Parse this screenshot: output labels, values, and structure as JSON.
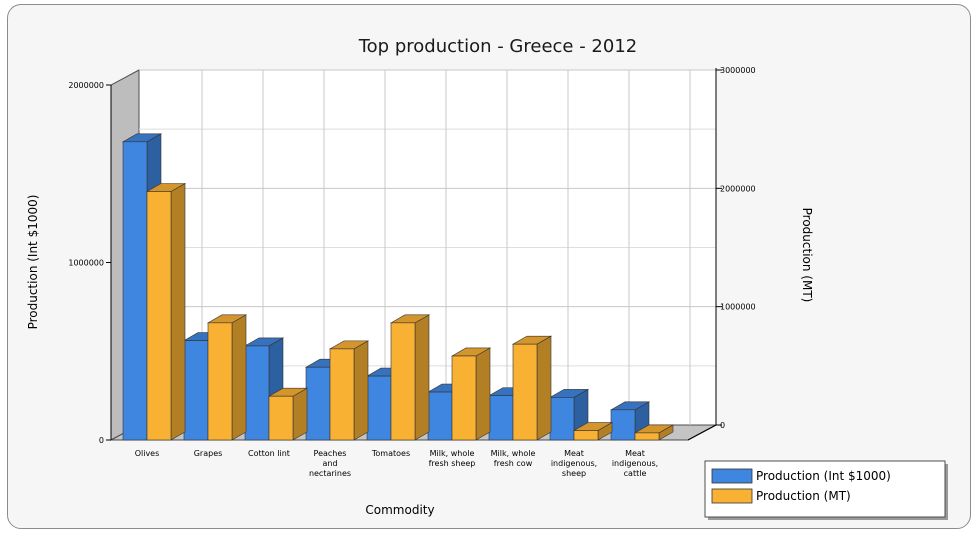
{
  "chart_data": {
    "type": "bar",
    "title": "Top production - Greece - 2012",
    "xlabel": "Commodity",
    "ylabel_left": "Production (Int $1000)",
    "ylabel_right": "Production (MT)",
    "ylim_left": [
      0,
      2000000
    ],
    "ylim_right": [
      0,
      3000000
    ],
    "left_ticks": [
      "0",
      "1000000",
      "2000000"
    ],
    "right_ticks": [
      "0",
      "1000000",
      "2000000",
      "3000000"
    ],
    "categories": [
      [
        "Olives"
      ],
      [
        "Grapes"
      ],
      [
        "Cotton lint"
      ],
      [
        "Peaches",
        "and",
        "nectarines"
      ],
      [
        "Tomatoes"
      ],
      [
        "Milk, whole",
        "fresh sheep"
      ],
      [
        "Milk, whole",
        "fresh cow"
      ],
      [
        "Meat",
        "indigenous,",
        "sheep"
      ],
      [
        "Meat",
        "indigenous,",
        "cattle"
      ]
    ],
    "series": [
      {
        "name": "Production (Int $1000)",
        "axis": "left",
        "color": "#3f86e0",
        "values": [
          1680000,
          560000,
          530000,
          410000,
          360000,
          270000,
          250000,
          240000,
          170000
        ]
      },
      {
        "name": "Production (MT)",
        "axis": "right",
        "color": "#f9b134",
        "values": [
          2100000,
          990000,
          370000,
          770000,
          990000,
          710000,
          810000,
          80000,
          60000
        ]
      }
    ],
    "grid": true,
    "legend_position": "bottom-right"
  }
}
